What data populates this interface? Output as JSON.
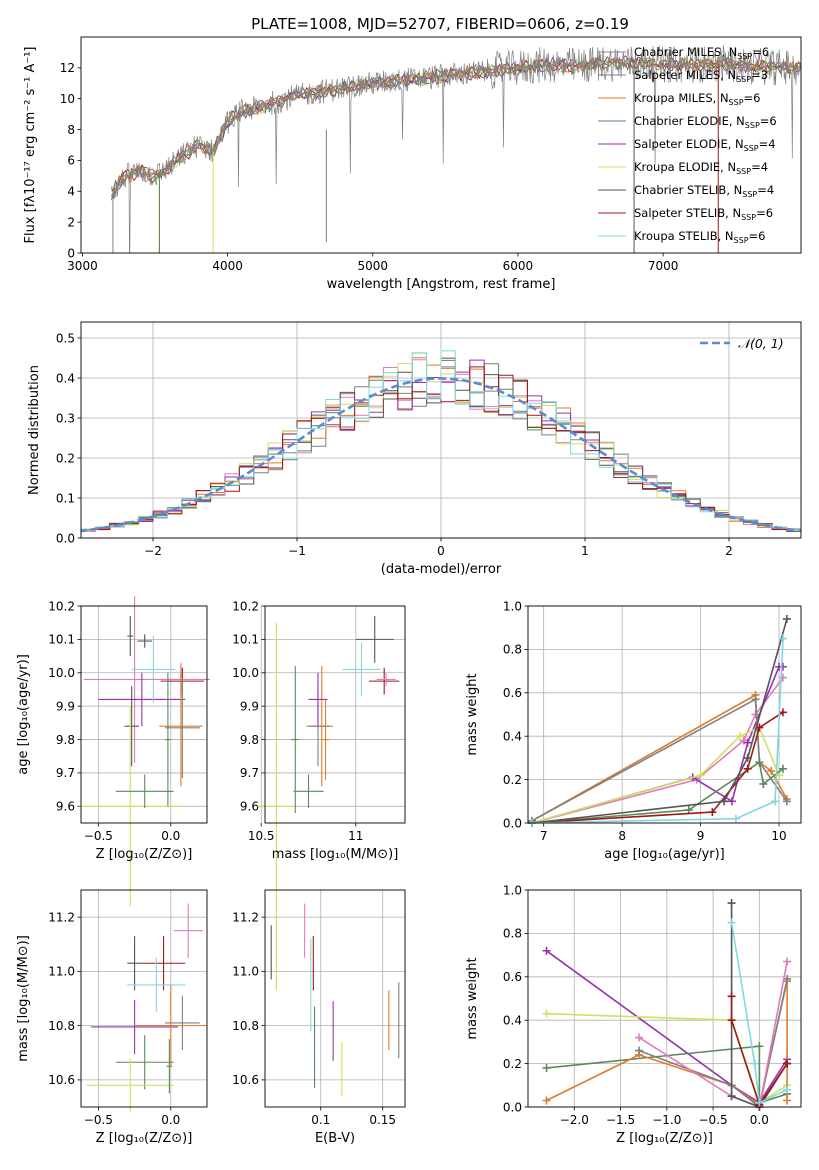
{
  "figure_title": "PLATE=1008, MJD=52707, FIBERID=0606, z=0.19",
  "model_colors": [
    "#808080",
    "#808080",
    "#e07b2a",
    "#5a8a5a",
    "#9a30b0",
    "#cfe060",
    "#555555",
    "#a01818",
    "#80d8e0"
  ],
  "chart_data": [
    {
      "type": "line",
      "title": "PLATE=1008, MJD=52707, FIBERID=0606, z=0.19",
      "xlabel": "wavelength [Angstrom, rest frame]",
      "ylabel": "Flux [fλ10⁻¹⁷ erg cm⁻² s⁻¹ A⁻¹]",
      "xlim": [
        2990,
        7950
      ],
      "ylim": [
        0,
        14
      ],
      "xticks": [
        3000,
        4000,
        5000,
        6000,
        7000
      ],
      "yticks": [
        0,
        2,
        4,
        6,
        8,
        10,
        12
      ],
      "legend_position": "right",
      "spectrum_anchors": {
        "x": [
          3200,
          3300,
          3400,
          3500,
          3600,
          3700,
          3800,
          3900,
          4000,
          4100,
          4200,
          4400,
          4600,
          4800,
          5000,
          5200,
          5400,
          5600,
          5800,
          6000,
          6200,
          6400,
          6600,
          6800,
          7000,
          7200,
          7400,
          7600,
          7900
        ],
        "y": [
          3.9,
          5.0,
          5.3,
          5.0,
          5.6,
          6.4,
          7.0,
          6.6,
          8.5,
          9.2,
          9.4,
          10.0,
          10.4,
          10.7,
          11.0,
          11.2,
          11.4,
          11.6,
          11.8,
          12.0,
          12.2,
          12.1,
          12.3,
          12.3,
          12.2,
          12.2,
          12.3,
          12.1,
          12.0
        ]
      },
      "series": [
        {
          "name": "Chabrier MILES, N",
          "sub": "SSP",
          "suffix": "=6"
        },
        {
          "name": "Salpeter MILES, N",
          "sub": "SSP",
          "suffix": "=3"
        },
        {
          "name": "Kroupa MILES, N",
          "sub": "SSP",
          "suffix": "=6"
        },
        {
          "name": "Chabrier ELODIE, N",
          "sub": "SSP",
          "suffix": "=6"
        },
        {
          "name": "Salpeter ELODIE, N",
          "sub": "SSP",
          "suffix": "=4"
        },
        {
          "name": "Kroupa ELODIE, N",
          "sub": "SSP",
          "suffix": "=4"
        },
        {
          "name": "Chabrier STELIB, N",
          "sub": "SSP",
          "suffix": "=4"
        },
        {
          "name": "Salpeter STELIB, N",
          "sub": "SSP",
          "suffix": "=6"
        },
        {
          "name": "Kroupa STELIB, N",
          "sub": "SSP",
          "suffix": "=6"
        }
      ]
    },
    {
      "type": "bar",
      "xlabel": "(data-model)/error",
      "ylabel": "Normed distribution",
      "xlim": [
        -2.5,
        2.5
      ],
      "ylim": [
        0,
        0.54
      ],
      "xticks": [
        -2,
        -1,
        0,
        1,
        2
      ],
      "xtick_labels": [
        "−2",
        "−1",
        "0",
        "1",
        "2"
      ],
      "yticks": [
        0.0,
        0.1,
        0.2,
        0.3,
        0.4,
        0.5
      ],
      "bin_width": 0.1,
      "legend": "𝒩(0, 1)",
      "legend_position": "top-right",
      "peak_bins": [
        {
          "x": 0.1,
          "y": 0.52
        },
        {
          "x": 0.2,
          "y": 0.45
        },
        {
          "x": -0.1,
          "y": 0.45
        }
      ]
    },
    {
      "type": "scatter",
      "xlabel": "Z [log₁₀(Z/Z⊙)]",
      "ylabel": "age  [log₁₀(age/yr)]",
      "xlim": [
        -0.62,
        0.25
      ],
      "ylim": [
        9.55,
        10.2
      ],
      "xticks": [
        -0.5,
        0.0
      ],
      "xtick_labels": [
        "−0.5",
        "0.0"
      ],
      "yticks": [
        9.6,
        9.7,
        9.8,
        9.9,
        10.0,
        10.1,
        10.2
      ],
      "points": [
        {
          "x": -0.25,
          "y": 9.98,
          "xerr": 0.35,
          "yerr": 0.25,
          "c": 9
        },
        {
          "x": -0.2,
          "y": 9.92,
          "xerr": 0.3,
          "yerr": 0.08,
          "c": 4
        },
        {
          "x": -0.12,
          "y": 10.01,
          "xerr": 0.15,
          "yerr": 0.1,
          "c": 8
        },
        {
          "x": 0.07,
          "y": 9.98,
          "xerr": 0.2,
          "yerr": 0.05,
          "c": 9
        },
        {
          "x": 0.08,
          "y": 9.975,
          "xerr": 0.15,
          "yerr": 0.04,
          "c": 7
        },
        {
          "x": -0.27,
          "y": 9.84,
          "xerr": 0.05,
          "yerr": 0.12,
          "c": 6
        },
        {
          "x": 0.07,
          "y": 9.84,
          "xerr": 0.15,
          "yerr": 0.18,
          "c": 2
        },
        {
          "x": 0.08,
          "y": 9.835,
          "xerr": 0.12,
          "yerr": 0.15,
          "c": 0
        },
        {
          "x": -0.28,
          "y": 9.6,
          "xerr": 0.35,
          "yerr": 0.3,
          "c": 5
        },
        {
          "x": -0.18,
          "y": 10.095,
          "xerr": 0.05,
          "yerr": 0.02,
          "c": 6
        },
        {
          "x": -0.28,
          "y": 10.11,
          "xerr": 0.02,
          "yerr": 0.06,
          "c": 6
        },
        {
          "x": -0.18,
          "y": 9.645,
          "xerr": 0.2,
          "yerr": 0.05,
          "c": 3
        },
        {
          "x": -0.02,
          "y": 9.8,
          "xerr": 0.02,
          "yerr": 0.2,
          "c": 3
        }
      ]
    },
    {
      "type": "scatter",
      "xlabel": "mass [log₁₀(M/M⊙)]",
      "ylabel": "",
      "xlim": [
        10.52,
        11.26
      ],
      "ylim": [
        9.55,
        10.2
      ],
      "xticks": [
        10.5,
        11.0
      ],
      "yticks": [
        9.6,
        9.7,
        9.8,
        9.9,
        10.0,
        10.1,
        10.2
      ],
      "points": [
        {
          "x": 10.58,
          "y": 9.6,
          "xerr": 0.1,
          "yerr": 0.55,
          "c": 5
        },
        {
          "x": 10.75,
          "y": 9.645,
          "xerr": 0.08,
          "yerr": 0.05,
          "c": 3
        },
        {
          "x": 10.82,
          "y": 9.84,
          "xerr": 0.06,
          "yerr": 0.18,
          "c": 2
        },
        {
          "x": 10.8,
          "y": 9.84,
          "xerr": 0.06,
          "yerr": 0.12,
          "c": 0
        },
        {
          "x": 10.8,
          "y": 9.92,
          "xerr": 0.05,
          "yerr": 0.08,
          "c": 4
        },
        {
          "x": 11.03,
          "y": 10.01,
          "xerr": 0.1,
          "yerr": 0.08,
          "c": 8
        },
        {
          "x": 11.15,
          "y": 9.975,
          "xerr": 0.08,
          "yerr": 0.04,
          "c": 7
        },
        {
          "x": 11.16,
          "y": 9.98,
          "xerr": 0.05,
          "yerr": 0.02,
          "c": 9
        },
        {
          "x": 11.1,
          "y": 10.1,
          "xerr": 0.1,
          "yerr": 0.07,
          "c": 6
        },
        {
          "x": 10.68,
          "y": 9.8,
          "xerr": 0.02,
          "yerr": 0.22,
          "c": 3
        },
        {
          "x": 10.84,
          "y": 9.8,
          "xerr": 0.02,
          "yerr": 0.12,
          "c": 2
        }
      ]
    },
    {
      "type": "line",
      "xlabel": "age  [log₁₀(age/yr)]",
      "ylabel": "mass weight",
      "xlim": [
        6.8,
        10.28
      ],
      "ylim": [
        0,
        1
      ],
      "xticks": [
        7,
        8,
        9,
        10
      ],
      "yticks": [
        0.0,
        0.2,
        0.4,
        0.6,
        0.8,
        1.0
      ],
      "series": [
        {
          "c": 9,
          "x": [
            6.85,
            8.95,
            9.55,
            9.7,
            10.05
          ],
          "y": [
            0.0,
            0.2,
            0.38,
            0.5,
            0.67
          ]
        },
        {
          "c": 4,
          "x": [
            6.85,
            8.9,
            9.4,
            9.6,
            10.0,
            10.05
          ],
          "y": [
            0.0,
            0.21,
            0.1,
            0.37,
            0.72,
            0.72
          ]
        },
        {
          "c": 5,
          "x": [
            6.85,
            9.0,
            9.5,
            9.75,
            10.0
          ],
          "y": [
            0.0,
            0.22,
            0.4,
            0.44,
            0.22
          ]
        },
        {
          "c": 2,
          "x": [
            6.85,
            9.7,
            9.75,
            9.9,
            10.1
          ],
          "y": [
            0.01,
            0.59,
            0.28,
            0.24,
            0.11
          ]
        },
        {
          "c": 0,
          "x": [
            6.85,
            9.7,
            9.75,
            10.1
          ],
          "y": [
            0.01,
            0.57,
            0.28,
            0.1
          ]
        },
        {
          "c": 3,
          "x": [
            6.85,
            8.85,
            9.75,
            9.8,
            10.05
          ],
          "y": [
            0.0,
            0.06,
            0.28,
            0.18,
            0.25
          ]
        },
        {
          "c": 7,
          "x": [
            6.85,
            9.15,
            9.6,
            9.75,
            10.05
          ],
          "y": [
            0.0,
            0.05,
            0.25,
            0.44,
            0.51
          ]
        },
        {
          "c": 6,
          "x": [
            6.85,
            9.3,
            9.6,
            10.1
          ],
          "y": [
            0.0,
            0.1,
            0.3,
            0.94
          ]
        },
        {
          "c": 8,
          "x": [
            6.85,
            9.45,
            9.95,
            10.05
          ],
          "y": [
            0.0,
            0.02,
            0.1,
            0.85
          ]
        }
      ]
    },
    {
      "type": "scatter",
      "xlabel": "Z [log₁₀(Z/Z⊙)]",
      "ylabel": "mass [log₁₀(M/M⊙)]",
      "xlim": [
        -0.62,
        0.25
      ],
      "ylim": [
        10.5,
        11.3
      ],
      "xticks": [
        -0.5,
        0.0
      ],
      "xtick_labels": [
        "−0.5",
        "0.0"
      ],
      "yticks": [
        10.6,
        10.8,
        11.0,
        11.2
      ],
      "points": [
        {
          "x": 0.12,
          "y": 11.15,
          "xerr": 0.1,
          "yerr": 0.1,
          "c": 9
        },
        {
          "x": -0.25,
          "y": 11.03,
          "xerr": 0.05,
          "yerr": 0.1,
          "c": 6
        },
        {
          "x": -0.05,
          "y": 11.03,
          "xerr": 0.15,
          "yerr": 0.1,
          "c": 7
        },
        {
          "x": -0.1,
          "y": 10.95,
          "xerr": 0.2,
          "yerr": 0.1,
          "c": 8
        },
        {
          "x": -0.25,
          "y": 10.795,
          "xerr": 0.3,
          "yerr": 0.1,
          "c": 4
        },
        {
          "x": 0.0,
          "y": 10.8,
          "xerr": 0.25,
          "yerr": 0.15,
          "c": 2
        },
        {
          "x": 0.08,
          "y": 10.81,
          "xerr": 0.12,
          "yerr": 0.1,
          "c": 0
        },
        {
          "x": -0.18,
          "y": 10.665,
          "xerr": 0.2,
          "yerr": 0.1,
          "c": 3
        },
        {
          "x": -0.28,
          "y": 10.58,
          "xerr": 0.3,
          "yerr": 0.1,
          "c": 5
        },
        {
          "x": -0.01,
          "y": 10.65,
          "xerr": 0.02,
          "yerr": 0.1,
          "c": 3
        }
      ]
    },
    {
      "type": "scatter",
      "xlabel": "E(B-V)",
      "ylabel": "",
      "xlim": [
        0.055,
        0.168
      ],
      "ylim": [
        10.5,
        11.3
      ],
      "xticks": [
        0.1,
        0.15
      ],
      "yticks": [
        10.6,
        10.8,
        11.0,
        11.2
      ],
      "points": [
        {
          "x": 0.06,
          "y": 11.07,
          "yerr": 0.1,
          "c": 6
        },
        {
          "x": 0.087,
          "y": 11.15,
          "yerr": 0.1,
          "c": 9
        },
        {
          "x": 0.092,
          "y": 10.95,
          "yerr": 0.17,
          "c": 8
        },
        {
          "x": 0.094,
          "y": 11.03,
          "yerr": 0.1,
          "c": 7
        },
        {
          "x": 0.095,
          "y": 10.72,
          "yerr": 0.15,
          "c": 3
        },
        {
          "x": 0.11,
          "y": 10.78,
          "yerr": 0.11,
          "c": 4
        },
        {
          "x": 0.117,
          "y": 10.64,
          "yerr": 0.1,
          "c": 5
        },
        {
          "x": 0.155,
          "y": 10.82,
          "yerr": 0.11,
          "c": 2
        },
        {
          "x": 0.163,
          "y": 10.82,
          "yerr": 0.14,
          "c": 0
        }
      ]
    },
    {
      "type": "line",
      "xlabel": "Z [log₁₀(Z/Z⊙)]",
      "ylabel": "mass weight",
      "xlim": [
        -2.5,
        0.45
      ],
      "ylim": [
        0,
        1
      ],
      "xticks": [
        -2.0,
        -1.5,
        -1.0,
        -0.5,
        0.0
      ],
      "xtick_labels": [
        "−2.0",
        "−1.5",
        "−1.0",
        "−0.5",
        "0.0"
      ],
      "yticks": [
        0.0,
        0.2,
        0.4,
        0.6,
        0.8,
        1.0
      ],
      "series": [
        {
          "c": 4,
          "x": [
            -2.3,
            -0.3,
            0.0,
            0.3
          ],
          "y": [
            0.72,
            0.1,
            0.02,
            0.22
          ]
        },
        {
          "c": 5,
          "x": [
            -2.3,
            -0.3,
            0.0,
            0.3
          ],
          "y": [
            0.43,
            0.4,
            0.02,
            0.1
          ]
        },
        {
          "c": 3,
          "x": [
            -2.3,
            0.0,
            0.0,
            0.3
          ],
          "y": [
            0.18,
            0.28,
            0.02,
            0.06
          ]
        },
        {
          "c": 2,
          "x": [
            -2.3,
            -1.3,
            -0.3,
            0.0,
            0.3,
            0.3
          ],
          "y": [
            0.03,
            0.24,
            0.1,
            0.01,
            0.58,
            0.03
          ]
        },
        {
          "c": 0,
          "x": [
            -1.3,
            -0.3,
            0.0,
            0.3
          ],
          "y": [
            0.26,
            0.1,
            0.0,
            0.59
          ]
        },
        {
          "c": 9,
          "x": [
            -1.3,
            -0.3,
            0.0,
            0.3
          ],
          "y": [
            0.32,
            0.05,
            0.0,
            0.67
          ]
        },
        {
          "c": 6,
          "x": [
            -0.3,
            -0.3,
            0.0,
            0.3
          ],
          "y": [
            0.94,
            0.05,
            0.0,
            0.2
          ]
        },
        {
          "c": 7,
          "x": [
            -0.3,
            -0.3,
            0.0,
            0.3
          ],
          "y": [
            0.51,
            0.4,
            0.01,
            0.2
          ]
        },
        {
          "c": 8,
          "x": [
            -0.3,
            -0.05,
            0.0,
            0.3
          ],
          "y": [
            0.85,
            0.2,
            0.02,
            0.08
          ]
        }
      ]
    }
  ]
}
